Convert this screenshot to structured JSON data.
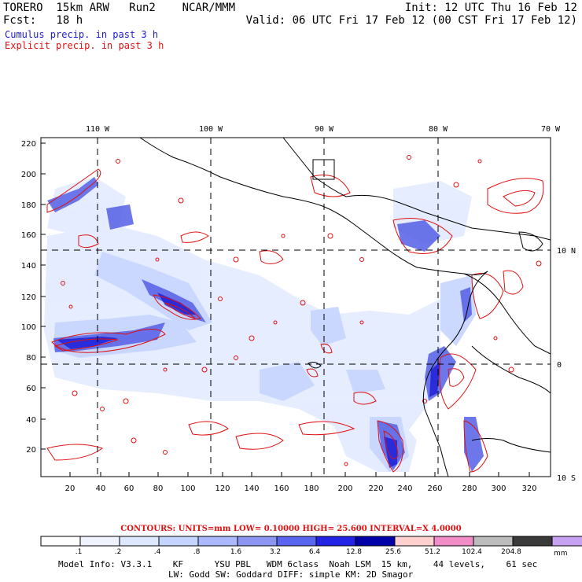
{
  "header": {
    "model": "TORERO  15km ARW   Run2    NCAR/MMM",
    "init": "Init: 12 UTC Thu 16 Feb 12",
    "fcst": "Fcst:   18 h",
    "valid": "Valid: 06 UTC Fri 17 Feb 12 (00 CST Fri 17 Feb 12)",
    "cumulus_label": "Cumulus precip. in past 3 h",
    "explicit_label": "Explicit precip. in past 3 h"
  },
  "colors": {
    "cumulus": "#1c1ccf",
    "explicit": "#e01010",
    "coast": "#000000",
    "grid": "#000000"
  },
  "map": {
    "top_lon_labels": [
      "110 W",
      "100 W",
      "90 W",
      "80 W",
      "70 W"
    ],
    "right_lat_labels": [
      "10 N",
      "0",
      "10 S"
    ],
    "y_ticks": [
      "220",
      "200",
      "180",
      "160",
      "140",
      "120",
      "100",
      "80",
      "60",
      "40",
      "20"
    ],
    "x_ticks": [
      "20",
      "40",
      "60",
      "80",
      "100",
      "120",
      "140",
      "160",
      "180",
      "200",
      "220",
      "240",
      "260",
      "280",
      "300",
      "320"
    ],
    "grid_lons": [
      "110 W",
      "100 W",
      "90 W",
      "80 W"
    ],
    "grid_lats": [
      "10 N",
      "0"
    ]
  },
  "contours_line": "CONTOURS:  UNITS=mm  LOW= 0.10000      HIGH=  25.600      INTERVAL=X  4.0000",
  "colorbar": {
    "unit": "mm",
    "colors": [
      "#ffffff",
      "#eef3ff",
      "#dde7ff",
      "#c4d6ff",
      "#aab8ff",
      "#8a96f2",
      "#5a66ef",
      "#2323e8",
      "#0000a8",
      "#ffd0d0",
      "#f08cc8",
      "#bcbcbc",
      "#3a3a3a",
      "#c8a0f4"
    ],
    "labels": [
      ".1",
      ".2",
      ".4",
      ".8",
      "1.6",
      "3.2",
      "6.4",
      "12.8",
      "25.6",
      "51.2",
      "102.4",
      "204.8"
    ]
  },
  "footer": {
    "line1": "Model Info: V3.3.1    KF      YSU PBL   WDM 6class  Noah LSM  15 km,    44 levels,    61 sec",
    "line2": "LW: Godd SW: Goddard DIFF: simple KM: 2D Smagor"
  }
}
